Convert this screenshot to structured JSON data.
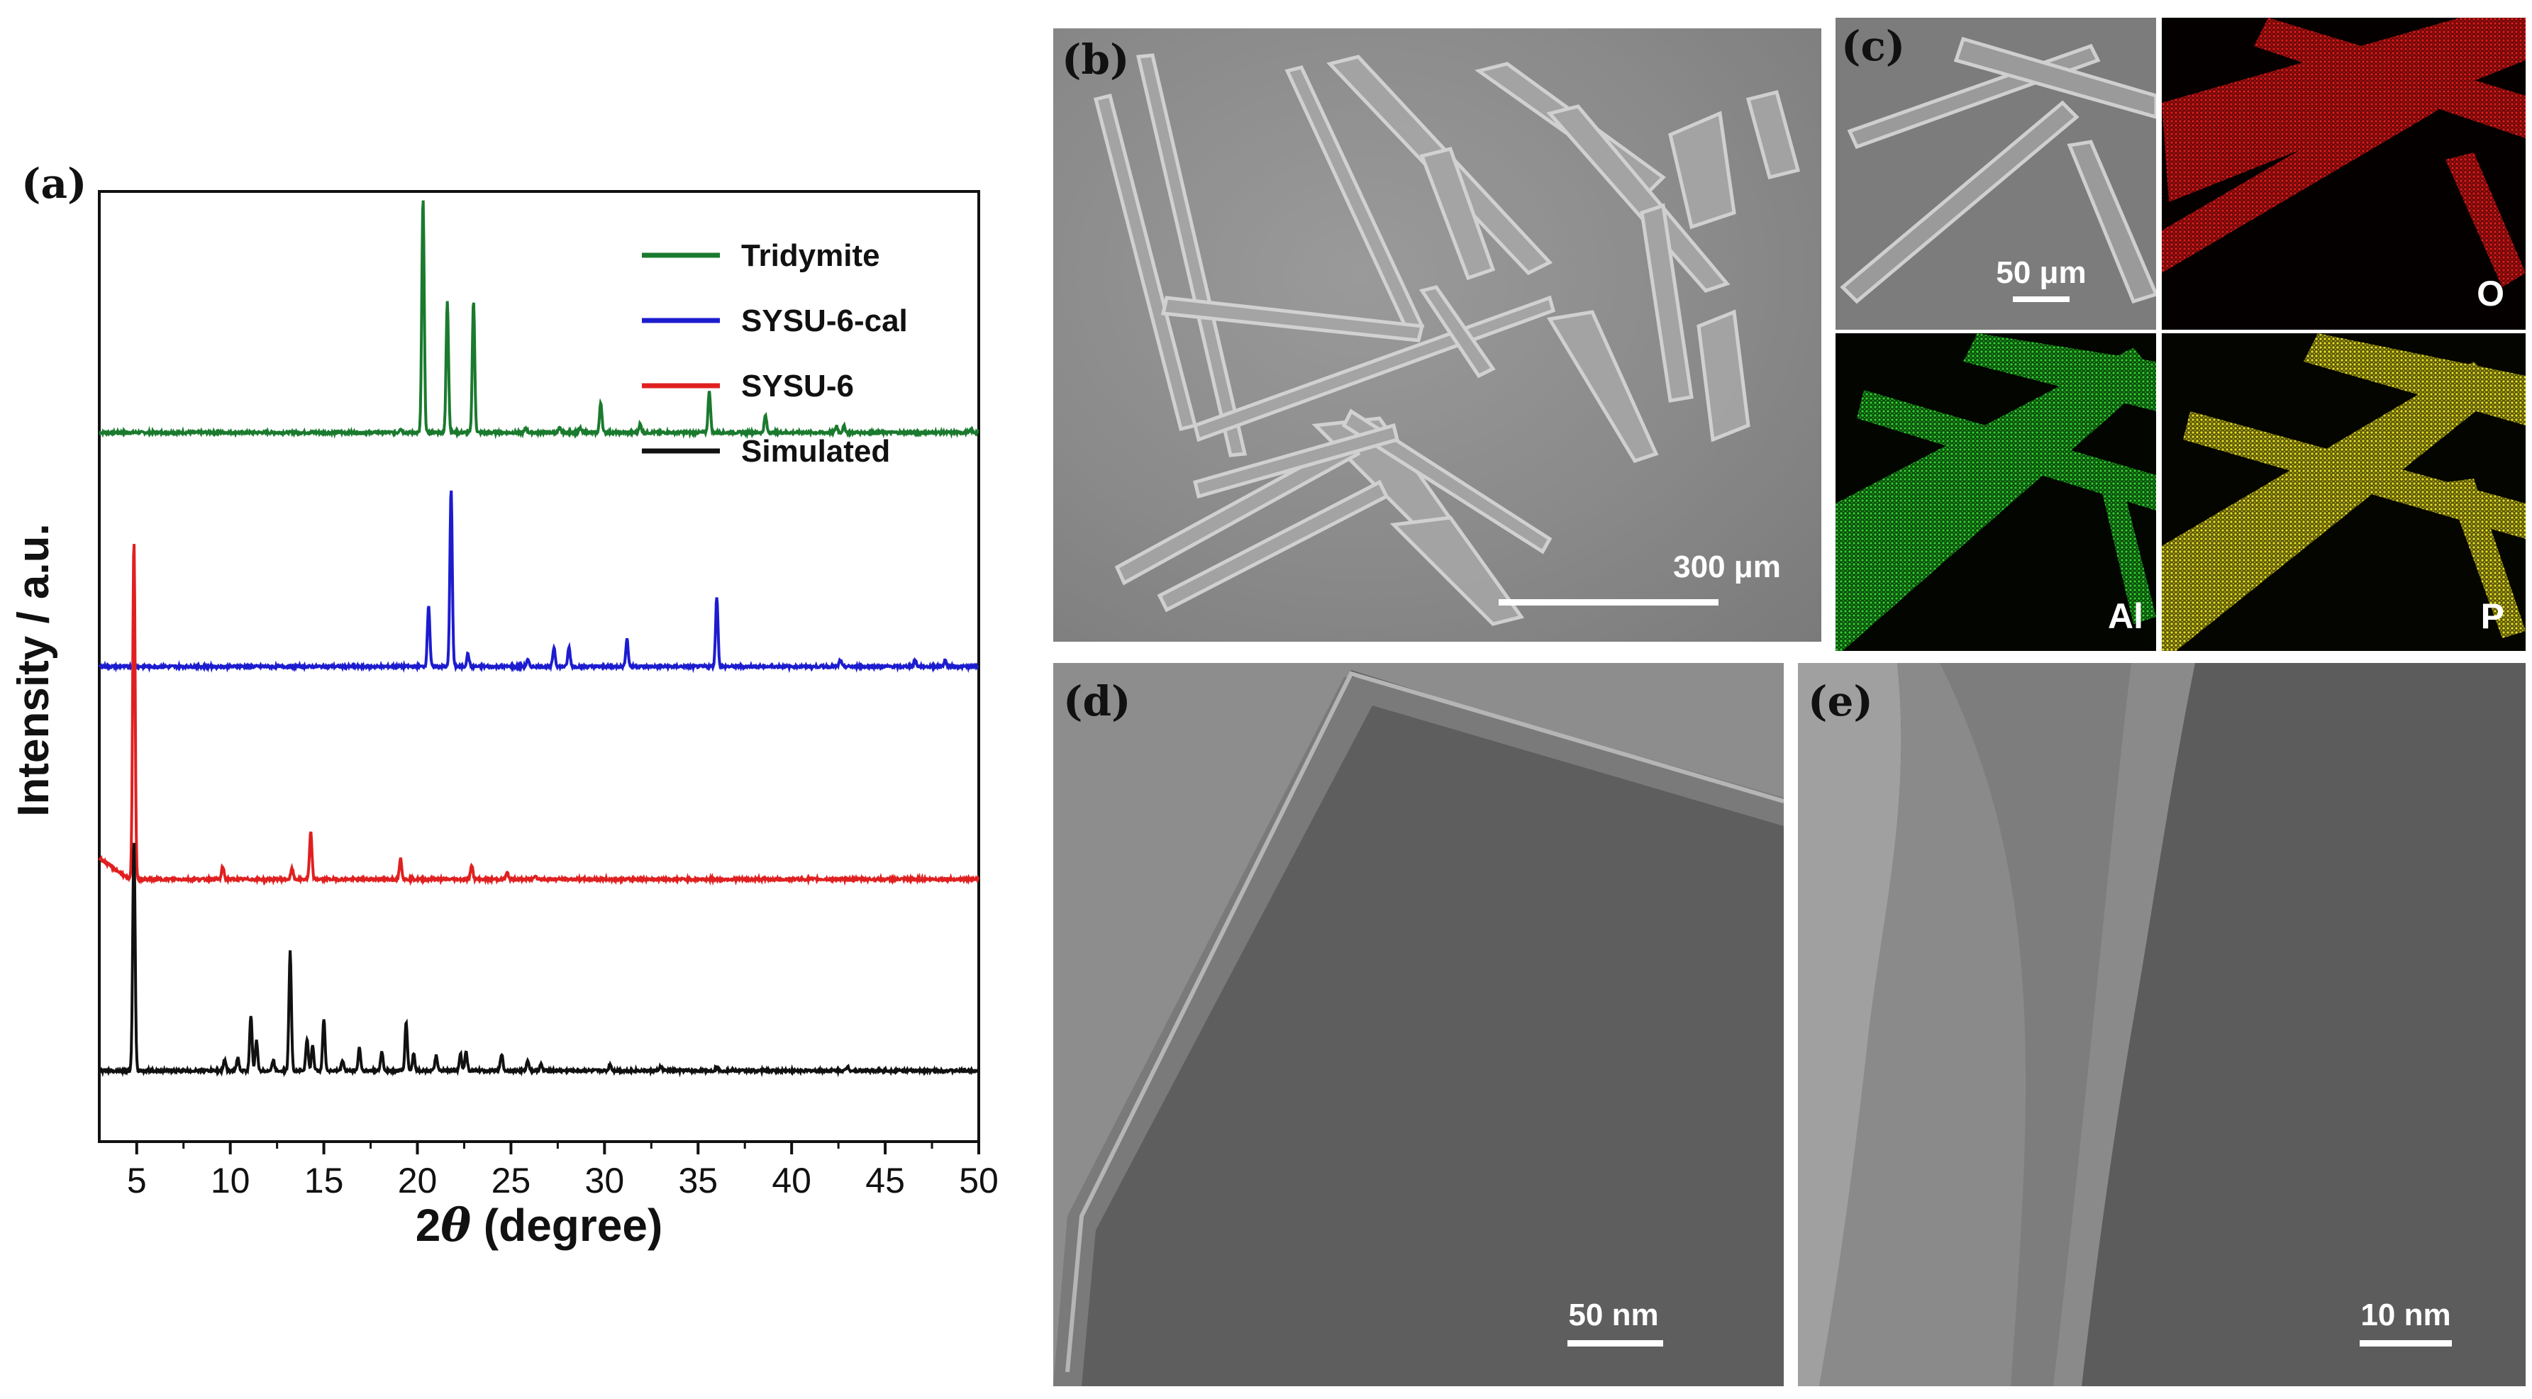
{
  "panels": {
    "a": {
      "label": "(a)"
    },
    "b": {
      "label": "(b)",
      "scale_bar": "300 μm"
    },
    "c": {
      "label": "(c)",
      "scale_bar": "50 μm",
      "elements": [
        "O",
        "Al",
        "P"
      ],
      "colors": {
        "O": "#d41414",
        "Al": "#22b722",
        "P": "#d8d21e"
      }
    },
    "d": {
      "label": "(d)",
      "scale_bar": "50 nm"
    },
    "e": {
      "label": "(e)",
      "scale_bar": "10 nm"
    }
  },
  "chart_data": {
    "type": "line",
    "xlabel_prefix": "2",
    "xlabel_theta": "θ",
    "xlabel_suffix": " (degree)",
    "ylabel": "Intensity / a.u.",
    "xlim": [
      3,
      50
    ],
    "x_ticks": [
      5,
      10,
      15,
      20,
      25,
      30,
      35,
      40,
      45,
      50
    ],
    "legend_position": "top-right",
    "series": [
      {
        "name": "Tridymite",
        "color": "#1a7a2e",
        "offset": 3.0,
        "baseline": 0.0,
        "peaks": [
          [
            19.1,
            0.02
          ],
          [
            20.3,
            1.1
          ],
          [
            21.6,
            0.62
          ],
          [
            23.0,
            0.62
          ],
          [
            25.8,
            0.02
          ],
          [
            27.6,
            0.02
          ],
          [
            28.7,
            0.02
          ],
          [
            29.8,
            0.14
          ],
          [
            31.9,
            0.04
          ],
          [
            35.6,
            0.2
          ],
          [
            38.6,
            0.08
          ],
          [
            42.4,
            0.03
          ],
          [
            42.8,
            0.03
          ],
          [
            49.6,
            0.01
          ]
        ]
      },
      {
        "name": "SYSU-6-cal",
        "color": "#1c1ccf",
        "offset": 1.9,
        "baseline": 0.0,
        "peaks": [
          [
            20.6,
            0.29
          ],
          [
            21.8,
            0.84
          ],
          [
            22.7,
            0.06
          ],
          [
            25.9,
            0.03
          ],
          [
            27.3,
            0.09
          ],
          [
            28.1,
            0.09
          ],
          [
            31.2,
            0.13
          ],
          [
            36.0,
            0.33
          ],
          [
            42.6,
            0.03
          ],
          [
            46.6,
            0.03
          ],
          [
            48.2,
            0.03
          ]
        ]
      },
      {
        "name": "SYSU-6",
        "color": "#e02020",
        "offset": 0.9,
        "baseline": 0.1,
        "peaks": [
          [
            4.85,
            1.6
          ],
          [
            9.6,
            0.06
          ],
          [
            13.3,
            0.05
          ],
          [
            14.3,
            0.22
          ],
          [
            19.1,
            0.1
          ],
          [
            22.9,
            0.07
          ],
          [
            24.8,
            0.03
          ],
          [
            26.3,
            0.02
          ]
        ]
      },
      {
        "name": "Simulated",
        "color": "#111111",
        "offset": 0.0,
        "baseline": 0.0,
        "peaks": [
          [
            4.85,
            1.08
          ],
          [
            9.7,
            0.05
          ],
          [
            10.4,
            0.06
          ],
          [
            11.1,
            0.26
          ],
          [
            11.4,
            0.14
          ],
          [
            12.3,
            0.05
          ],
          [
            13.2,
            0.56
          ],
          [
            14.1,
            0.15
          ],
          [
            14.4,
            0.12
          ],
          [
            15.0,
            0.24
          ],
          [
            16.0,
            0.05
          ],
          [
            16.9,
            0.11
          ],
          [
            18.1,
            0.09
          ],
          [
            19.4,
            0.23
          ],
          [
            19.8,
            0.08
          ],
          [
            21.0,
            0.07
          ],
          [
            22.3,
            0.08
          ],
          [
            22.6,
            0.09
          ],
          [
            24.5,
            0.08
          ],
          [
            25.9,
            0.05
          ],
          [
            26.6,
            0.03
          ],
          [
            30.3,
            0.03
          ],
          [
            33.0,
            0.02
          ],
          [
            36.0,
            0.02
          ],
          [
            43.0,
            0.02
          ]
        ]
      }
    ]
  }
}
